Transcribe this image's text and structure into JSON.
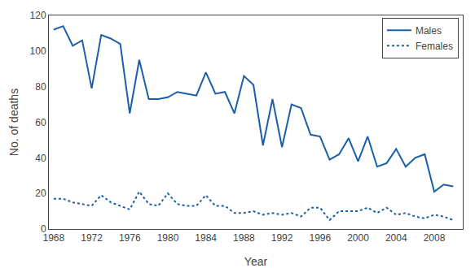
{
  "chart_data": {
    "type": "line",
    "xlabel": "Year",
    "ylabel": "No. of deaths",
    "x": [
      1968,
      1969,
      1970,
      1971,
      1972,
      1973,
      1974,
      1975,
      1976,
      1977,
      1978,
      1979,
      1980,
      1981,
      1982,
      1983,
      1984,
      1985,
      1986,
      1987,
      1988,
      1989,
      1990,
      1991,
      1992,
      1993,
      1994,
      1995,
      1996,
      1997,
      1998,
      1999,
      2000,
      2001,
      2002,
      2003,
      2004,
      2005,
      2006,
      2007,
      2008,
      2009,
      2010
    ],
    "series": [
      {
        "name": "Males",
        "color": "#1a5fa8",
        "line_style": "solid",
        "values": [
          112,
          114,
          103,
          106,
          79,
          109,
          107,
          104,
          65,
          95,
          73,
          73,
          74,
          77,
          76,
          75,
          88,
          76,
          77,
          65,
          86,
          81,
          47,
          73,
          46,
          70,
          68,
          53,
          52,
          39,
          42,
          51,
          38,
          52,
          35,
          37,
          45,
          35,
          40,
          42,
          21,
          25,
          24
        ]
      },
      {
        "name": "Females",
        "color": "#1a5fa8",
        "line_style": "dotted",
        "values": [
          17,
          17,
          15,
          14,
          13,
          19,
          15,
          13,
          11,
          21,
          14,
          13,
          20,
          14,
          13,
          13,
          19,
          13,
          13,
          9,
          9,
          10,
          8,
          9,
          8,
          9,
          7,
          12,
          12,
          5,
          10,
          10,
          10,
          12,
          9,
          12,
          8,
          9,
          7,
          6,
          8,
          7,
          5
        ]
      }
    ],
    "xlim": [
      1967.5,
      2011
    ],
    "xticks": [
      1968,
      1972,
      1976,
      1980,
      1984,
      1988,
      1992,
      1996,
      2000,
      2004,
      2008
    ],
    "ylim": [
      0,
      120
    ],
    "yticks": [
      0,
      20,
      40,
      60,
      80,
      100,
      120
    ],
    "grid": false,
    "legend": "upper right"
  }
}
